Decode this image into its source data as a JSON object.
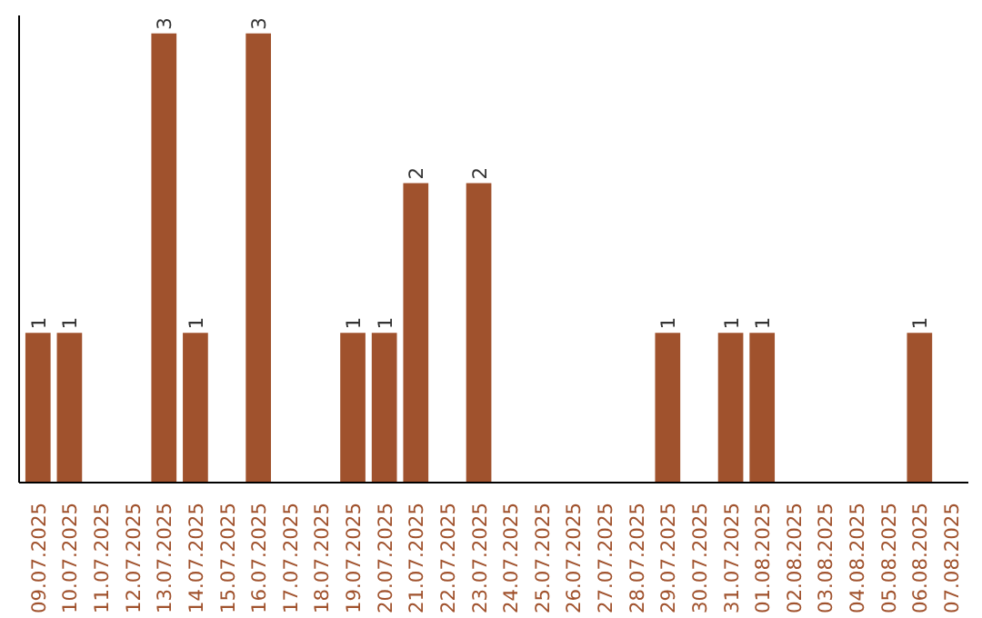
{
  "chart_data": {
    "type": "bar",
    "categories": [
      "09.07.2025",
      "10.07.2025",
      "11.07.2025",
      "12.07.2025",
      "13.07.2025",
      "14.07.2025",
      "15.07.2025",
      "16.07.2025",
      "17.07.2025",
      "18.07.2025",
      "19.07.2025",
      "20.07.2025",
      "21.07.2025",
      "22.07.2025",
      "23.07.2025",
      "24.07.2025",
      "25.07.2025",
      "26.07.2025",
      "27.07.2025",
      "28.07.2025",
      "29.07.2025",
      "30.07.2025",
      "31.07.2025",
      "01.08.2025",
      "02.08.2025",
      "03.08.2025",
      "04.08.2025",
      "05.08.2025",
      "06.08.2025",
      "07.08.2025"
    ],
    "values": [
      1,
      1,
      0,
      0,
      3,
      1,
      0,
      3,
      0,
      0,
      1,
      1,
      2,
      0,
      2,
      0,
      0,
      0,
      0,
      0,
      1,
      0,
      1,
      1,
      0,
      0,
      0,
      0,
      1,
      0
    ],
    "value_labels": [
      "1",
      "1",
      null,
      null,
      "3",
      "1",
      null,
      "3",
      null,
      null,
      "1",
      "1",
      "2",
      null,
      "2",
      null,
      null,
      null,
      null,
      null,
      "1",
      null,
      "1",
      "1",
      null,
      null,
      null,
      null,
      "1",
      null
    ],
    "color": "#a0522d",
    "tick_labels": "x",
    "grid": false
  }
}
